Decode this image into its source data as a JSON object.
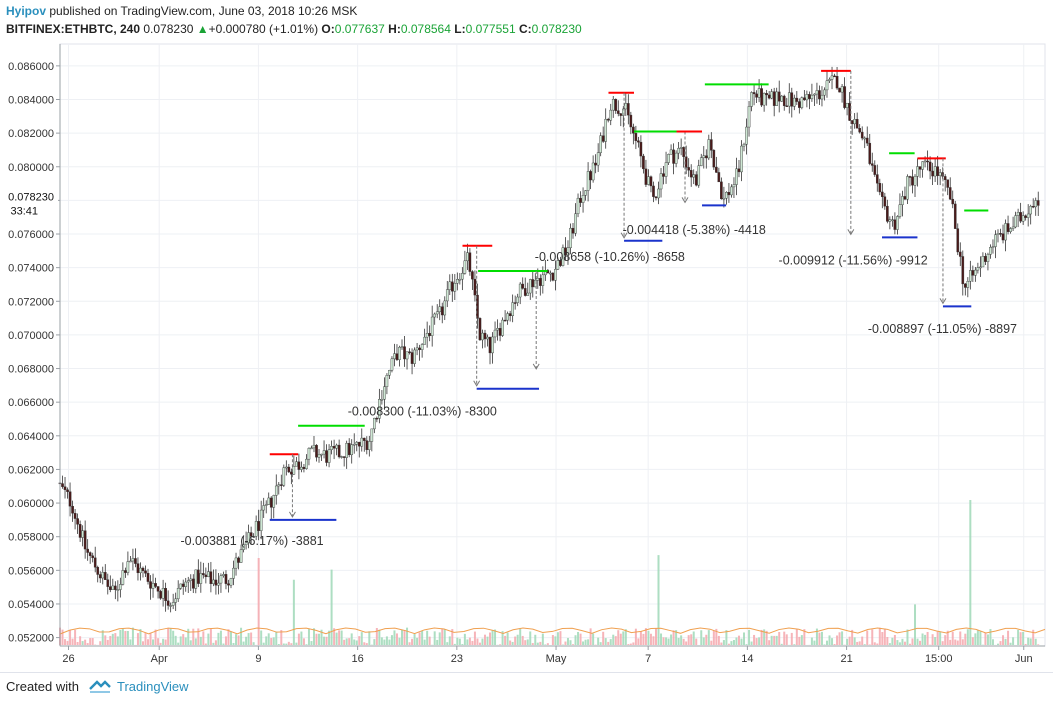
{
  "header": {
    "user": "Hyipov",
    "published": "published on TradingView.com, June 03, 2018 10:26 MSK",
    "symbol": "BITFINEX:ETHBTC, 240",
    "last": "0.078230",
    "change": "+0.000780 (+1.01%)",
    "o_label": "O:",
    "o_val": "0.077637",
    "h_label": "H:",
    "h_val": "0.078564",
    "l_label": "L:",
    "l_val": "0.077551",
    "c_label": "C:",
    "c_val": "0.078230",
    "up_color": "#1aa336"
  },
  "footer": {
    "created": "Created with",
    "brand": "TradingView"
  },
  "chart_data": {
    "type": "candlestick",
    "ylim": [
      0.0515,
      0.0873
    ],
    "yticks": [
      "0.086000",
      "0.084000",
      "0.082000",
      "0.080000",
      "0.078000",
      "0.076000",
      "0.074000",
      "0.072000",
      "0.070000",
      "0.068000",
      "0.066000",
      "0.064000",
      "0.062000",
      "0.060000",
      "0.058000",
      "0.056000",
      "0.054000",
      "0.052000"
    ],
    "last_price_label": "0.078230",
    "countdown_label": "33:41",
    "x_range": [
      0,
      69.5
    ],
    "xticks": [
      {
        "x": 0.6,
        "label": "26"
      },
      {
        "x": 7.0,
        "label": "Apr"
      },
      {
        "x": 14.0,
        "label": "9"
      },
      {
        "x": 21.0,
        "label": "16"
      },
      {
        "x": 28.0,
        "label": "23"
      },
      {
        "x": 35.0,
        "label": "May"
      },
      {
        "x": 41.5,
        "label": "7"
      },
      {
        "x": 48.5,
        "label": "14"
      },
      {
        "x": 55.5,
        "label": "21"
      },
      {
        "x": 62.0,
        "label": "15:00"
      },
      {
        "x": 68.0,
        "label": "Jun"
      }
    ],
    "path": [
      [
        0,
        0.0612
      ],
      [
        1,
        0.06
      ],
      [
        2,
        0.0572
      ],
      [
        3,
        0.0558
      ],
      [
        4,
        0.0545
      ],
      [
        5,
        0.0568
      ],
      [
        6,
        0.0558
      ],
      [
        7,
        0.055
      ],
      [
        8,
        0.0542
      ],
      [
        9,
        0.0552
      ],
      [
        10,
        0.0556
      ],
      [
        11,
        0.0554
      ],
      [
        12,
        0.0555
      ],
      [
        13,
        0.057
      ],
      [
        14,
        0.0585
      ],
      [
        15,
        0.06
      ],
      [
        16,
        0.062
      ],
      [
        17,
        0.0623
      ],
      [
        18,
        0.063
      ],
      [
        19,
        0.0628
      ],
      [
        20,
        0.063
      ],
      [
        21,
        0.0633
      ],
      [
        22,
        0.0638
      ],
      [
        23,
        0.067
      ],
      [
        24,
        0.069
      ],
      [
        25,
        0.0686
      ],
      [
        26,
        0.07
      ],
      [
        27,
        0.0712
      ],
      [
        28,
        0.0733
      ],
      [
        29,
        0.0745
      ],
      [
        29.8,
        0.07
      ],
      [
        30.5,
        0.0692
      ],
      [
        31.5,
        0.071
      ],
      [
        32.5,
        0.0725
      ],
      [
        33.5,
        0.0732
      ],
      [
        35,
        0.0738
      ],
      [
        36,
        0.0752
      ],
      [
        37,
        0.0785
      ],
      [
        38,
        0.0802
      ],
      [
        39,
        0.0838
      ],
      [
        40,
        0.0835
      ],
      [
        41,
        0.081
      ],
      [
        42,
        0.078
      ],
      [
        43,
        0.0805
      ],
      [
        44,
        0.081
      ],
      [
        45,
        0.079
      ],
      [
        46,
        0.0815
      ],
      [
        47,
        0.078
      ],
      [
        48,
        0.0795
      ],
      [
        49,
        0.0845
      ],
      [
        50,
        0.0838
      ],
      [
        51,
        0.0842
      ],
      [
        52,
        0.0838
      ],
      [
        53,
        0.084
      ],
      [
        54,
        0.0845
      ],
      [
        55,
        0.0852
      ],
      [
        56,
        0.083
      ],
      [
        57,
        0.0815
      ],
      [
        58,
        0.078
      ],
      [
        59,
        0.0765
      ],
      [
        60,
        0.079
      ],
      [
        61,
        0.08
      ],
      [
        62,
        0.0798
      ],
      [
        63,
        0.0782
      ],
      [
        64,
        0.0728
      ],
      [
        65,
        0.074
      ],
      [
        66,
        0.0755
      ],
      [
        67,
        0.0762
      ],
      [
        68,
        0.077
      ],
      [
        69,
        0.0782
      ]
    ],
    "vol_spikes": [
      {
        "x": 14.0,
        "v": 0.6
      },
      {
        "x": 16.5,
        "v": 0.45
      },
      {
        "x": 19.2,
        "v": 0.52
      },
      {
        "x": 42.2,
        "v": 0.62
      },
      {
        "x": 60.3,
        "v": 0.28
      },
      {
        "x": 64.3,
        "v": 1.0
      }
    ],
    "annotations": [
      {
        "top_x": [
          14.8,
          16.8
        ],
        "top_y": 0.0629,
        "top_color": "#ff0000",
        "bot_x": [
          14.8,
          19.5
        ],
        "bot_y": 0.059,
        "arrow_x": 16.4,
        "label": "-0.003881 (-6.17%) -3881",
        "label_x": 8.5,
        "label_y": 0.0575
      },
      {
        "top_x": [
          16.8,
          21.5
        ],
        "top_y": 0.0646,
        "top_color": "#00dd00",
        "bot_x": null,
        "bot_y": null,
        "arrow_x": null,
        "label": null,
        "label_x": null,
        "label_y": null
      },
      {
        "top_x": [
          28.4,
          30.5
        ],
        "top_y": 0.0753,
        "top_color": "#ff0000",
        "bot_x": [
          29.4,
          33.8
        ],
        "bot_y": 0.0668,
        "arrow_x": 29.4,
        "label": "-0.008300 (-11.03%) -8300",
        "label_x": 20.3,
        "label_y": 0.0652
      },
      {
        "top_x": [
          29.5,
          34.4
        ],
        "top_y": 0.0738,
        "top_color": "#00dd00",
        "bot_x": null,
        "bot_y": null,
        "arrow_x": 33.6,
        "label": "-0.008658 (-10.26%) -8658",
        "label_x": 33.5,
        "label_y": 0.0744
      },
      {
        "top_x": [
          38.7,
          40.5
        ],
        "top_y": 0.0844,
        "top_color": "#ff0000",
        "bot_x": [
          39.8,
          42.5
        ],
        "bot_y": 0.0756,
        "arrow_x": 39.8,
        "label": "-0.004418 (-5.38%) -4418",
        "label_x": 39.7,
        "label_y": 0.076
      },
      {
        "top_x": [
          40.5,
          43.5
        ],
        "top_y": 0.0821,
        "top_color": "#00dd00",
        "bot_x": [
          45.3,
          47.0
        ],
        "bot_y": 0.0777,
        "arrow_x": 44.1,
        "label": null,
        "label_x": null,
        "label_y": null
      },
      {
        "top_x": [
          43.5,
          45.3
        ],
        "top_y": 0.0821,
        "top_color": "#ff0000",
        "bot_x": null,
        "bot_y": null,
        "arrow_x": null,
        "label": null,
        "label_x": null,
        "label_y": null
      },
      {
        "top_x": [
          45.5,
          50.0
        ],
        "top_y": 0.0849,
        "top_color": "#00dd00",
        "bot_x": null,
        "bot_y": null,
        "arrow_x": null,
        "label": null,
        "label_x": null,
        "label_y": null
      },
      {
        "top_x": [
          53.7,
          55.8
        ],
        "top_y": 0.0857,
        "top_color": "#ff0000",
        "bot_x": [
          58.0,
          60.5
        ],
        "bot_y": 0.0758,
        "arrow_x": 55.8,
        "label": "-0.009912 (-11.56%) -9912",
        "label_x": 50.7,
        "label_y": 0.0742
      },
      {
        "top_x": [
          58.5,
          60.3
        ],
        "top_y": 0.0808,
        "top_color": "#00dd00",
        "bot_x": null,
        "bot_y": null,
        "arrow_x": null,
        "label": null,
        "label_x": null,
        "label_y": null
      },
      {
        "top_x": [
          60.5,
          62.5
        ],
        "top_y": 0.0805,
        "top_color": "#ff0000",
        "bot_x": [
          62.3,
          64.3
        ],
        "bot_y": 0.0717,
        "arrow_x": 62.3,
        "label": "-0.008897 (-11.05%) -8897",
        "label_x": 57.0,
        "label_y": 0.0701
      },
      {
        "top_x": [
          63.8,
          65.5
        ],
        "top_y": 0.0774,
        "top_color": "#00dd00",
        "bot_x": null,
        "bot_y": null,
        "arrow_x": null,
        "label": null,
        "label_x": null,
        "label_y": null
      }
    ]
  }
}
